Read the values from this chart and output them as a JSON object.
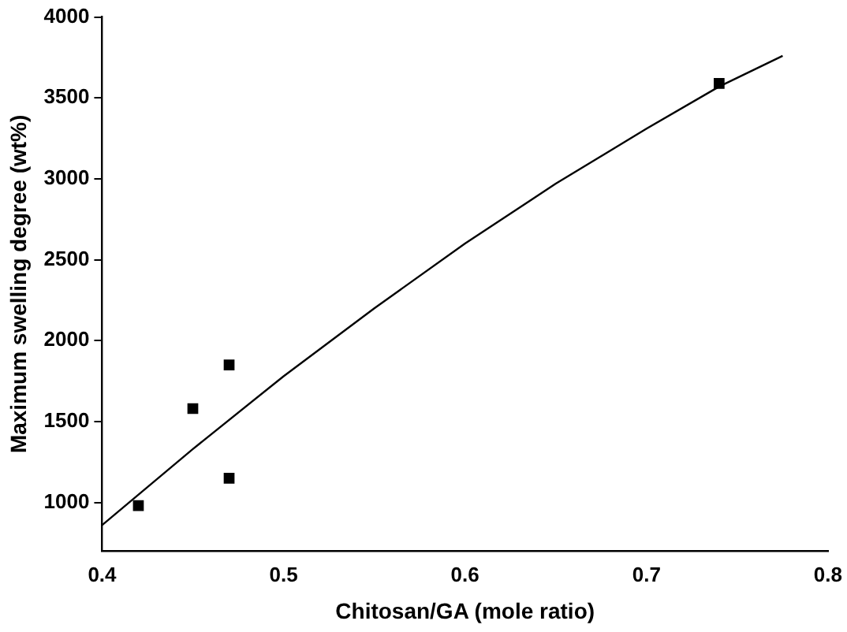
{
  "chart_data": {
    "type": "scatter",
    "xlabel": "Chitosan/GA (mole ratio)",
    "ylabel": "Maximum swelling degree (wt%)",
    "series": [
      {
        "color": "#000000",
        "marker": "square",
        "x": [
          0.42,
          0.45,
          0.47,
          0.47,
          0.74
        ],
        "values": [
          980,
          1580,
          1850,
          1150,
          3590
        ]
      },
      {
        "type": "line",
        "color": "#000000",
        "marker": "none",
        "x": [
          0.4,
          0.45,
          0.5,
          0.55,
          0.6,
          0.65,
          0.7,
          0.74,
          0.775
        ],
        "values": [
          860,
          1330,
          1780,
          2200,
          2600,
          2970,
          3310,
          3570,
          3760
        ]
      }
    ],
    "xlim": [
      0.4,
      0.8
    ],
    "xticks": [
      0.4,
      0.5,
      0.6,
      0.7,
      0.8
    ],
    "ylim": [
      700,
      4000
    ],
    "yticks": [
      1000,
      1500,
      2000,
      2500,
      3000,
      3500,
      4000
    ],
    "grid": false,
    "legend": false
  }
}
